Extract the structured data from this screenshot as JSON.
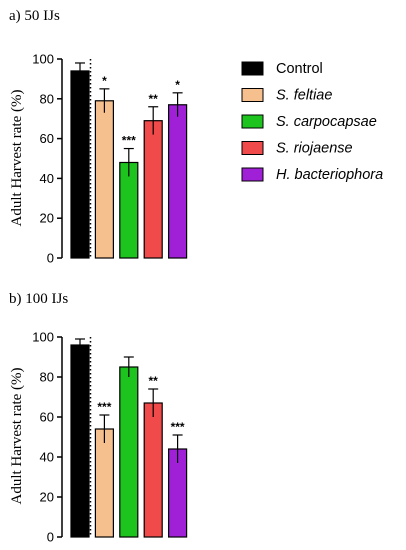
{
  "chart_data": [
    {
      "type": "bar",
      "title": "a) 50 IJs",
      "ylabel": "Adult Harvest rate (%)",
      "xlabel": "",
      "ylim": [
        0,
        100
      ],
      "yticks": [
        0,
        20,
        40,
        60,
        80,
        100
      ],
      "categories": [
        "Control",
        "S. feltiae",
        "S. carpocapsae",
        "S. riojaense",
        "H. bacteriophora"
      ],
      "values": [
        94,
        79,
        48,
        69,
        77
      ],
      "errors": [
        4,
        6,
        7,
        7,
        6
      ],
      "significance": [
        "",
        "*",
        "***",
        "**",
        "*"
      ],
      "colors": [
        "#000000",
        "#f5c08e",
        "#1ec41e",
        "#f04a4a",
        "#a020d8"
      ],
      "control_separator": "dotted",
      "grid": false
    },
    {
      "type": "bar",
      "title": "b) 100 IJs",
      "ylabel": "Adult Harvest rate (%)",
      "xlabel": "",
      "ylim": [
        0,
        100
      ],
      "yticks": [
        0,
        20,
        40,
        60,
        80,
        100
      ],
      "categories": [
        "Control",
        "S. feltiae",
        "S. carpocapsae",
        "S. riojaense",
        "H. bacteriophora"
      ],
      "values": [
        96,
        54,
        85,
        67,
        44
      ],
      "errors": [
        3,
        7,
        5,
        7,
        7
      ],
      "significance": [
        "",
        "***",
        "",
        "**",
        "***"
      ],
      "colors": [
        "#000000",
        "#f5c08e",
        "#1ec41e",
        "#f04a4a",
        "#a020d8"
      ],
      "control_separator": "dotted",
      "grid": false
    }
  ],
  "legend": {
    "placement": "right",
    "items": [
      {
        "label": "Control",
        "color": "#000000",
        "italic": false
      },
      {
        "label": "S. feltiae",
        "color": "#f5c08e",
        "italic": true
      },
      {
        "label": "S. carpocapsae",
        "color": "#1ec41e",
        "italic": true
      },
      {
        "label": "S. riojaense",
        "color": "#f04a4a",
        "italic": true
      },
      {
        "label": "H. bacteriophora",
        "color": "#a020d8",
        "italic": true
      }
    ]
  }
}
